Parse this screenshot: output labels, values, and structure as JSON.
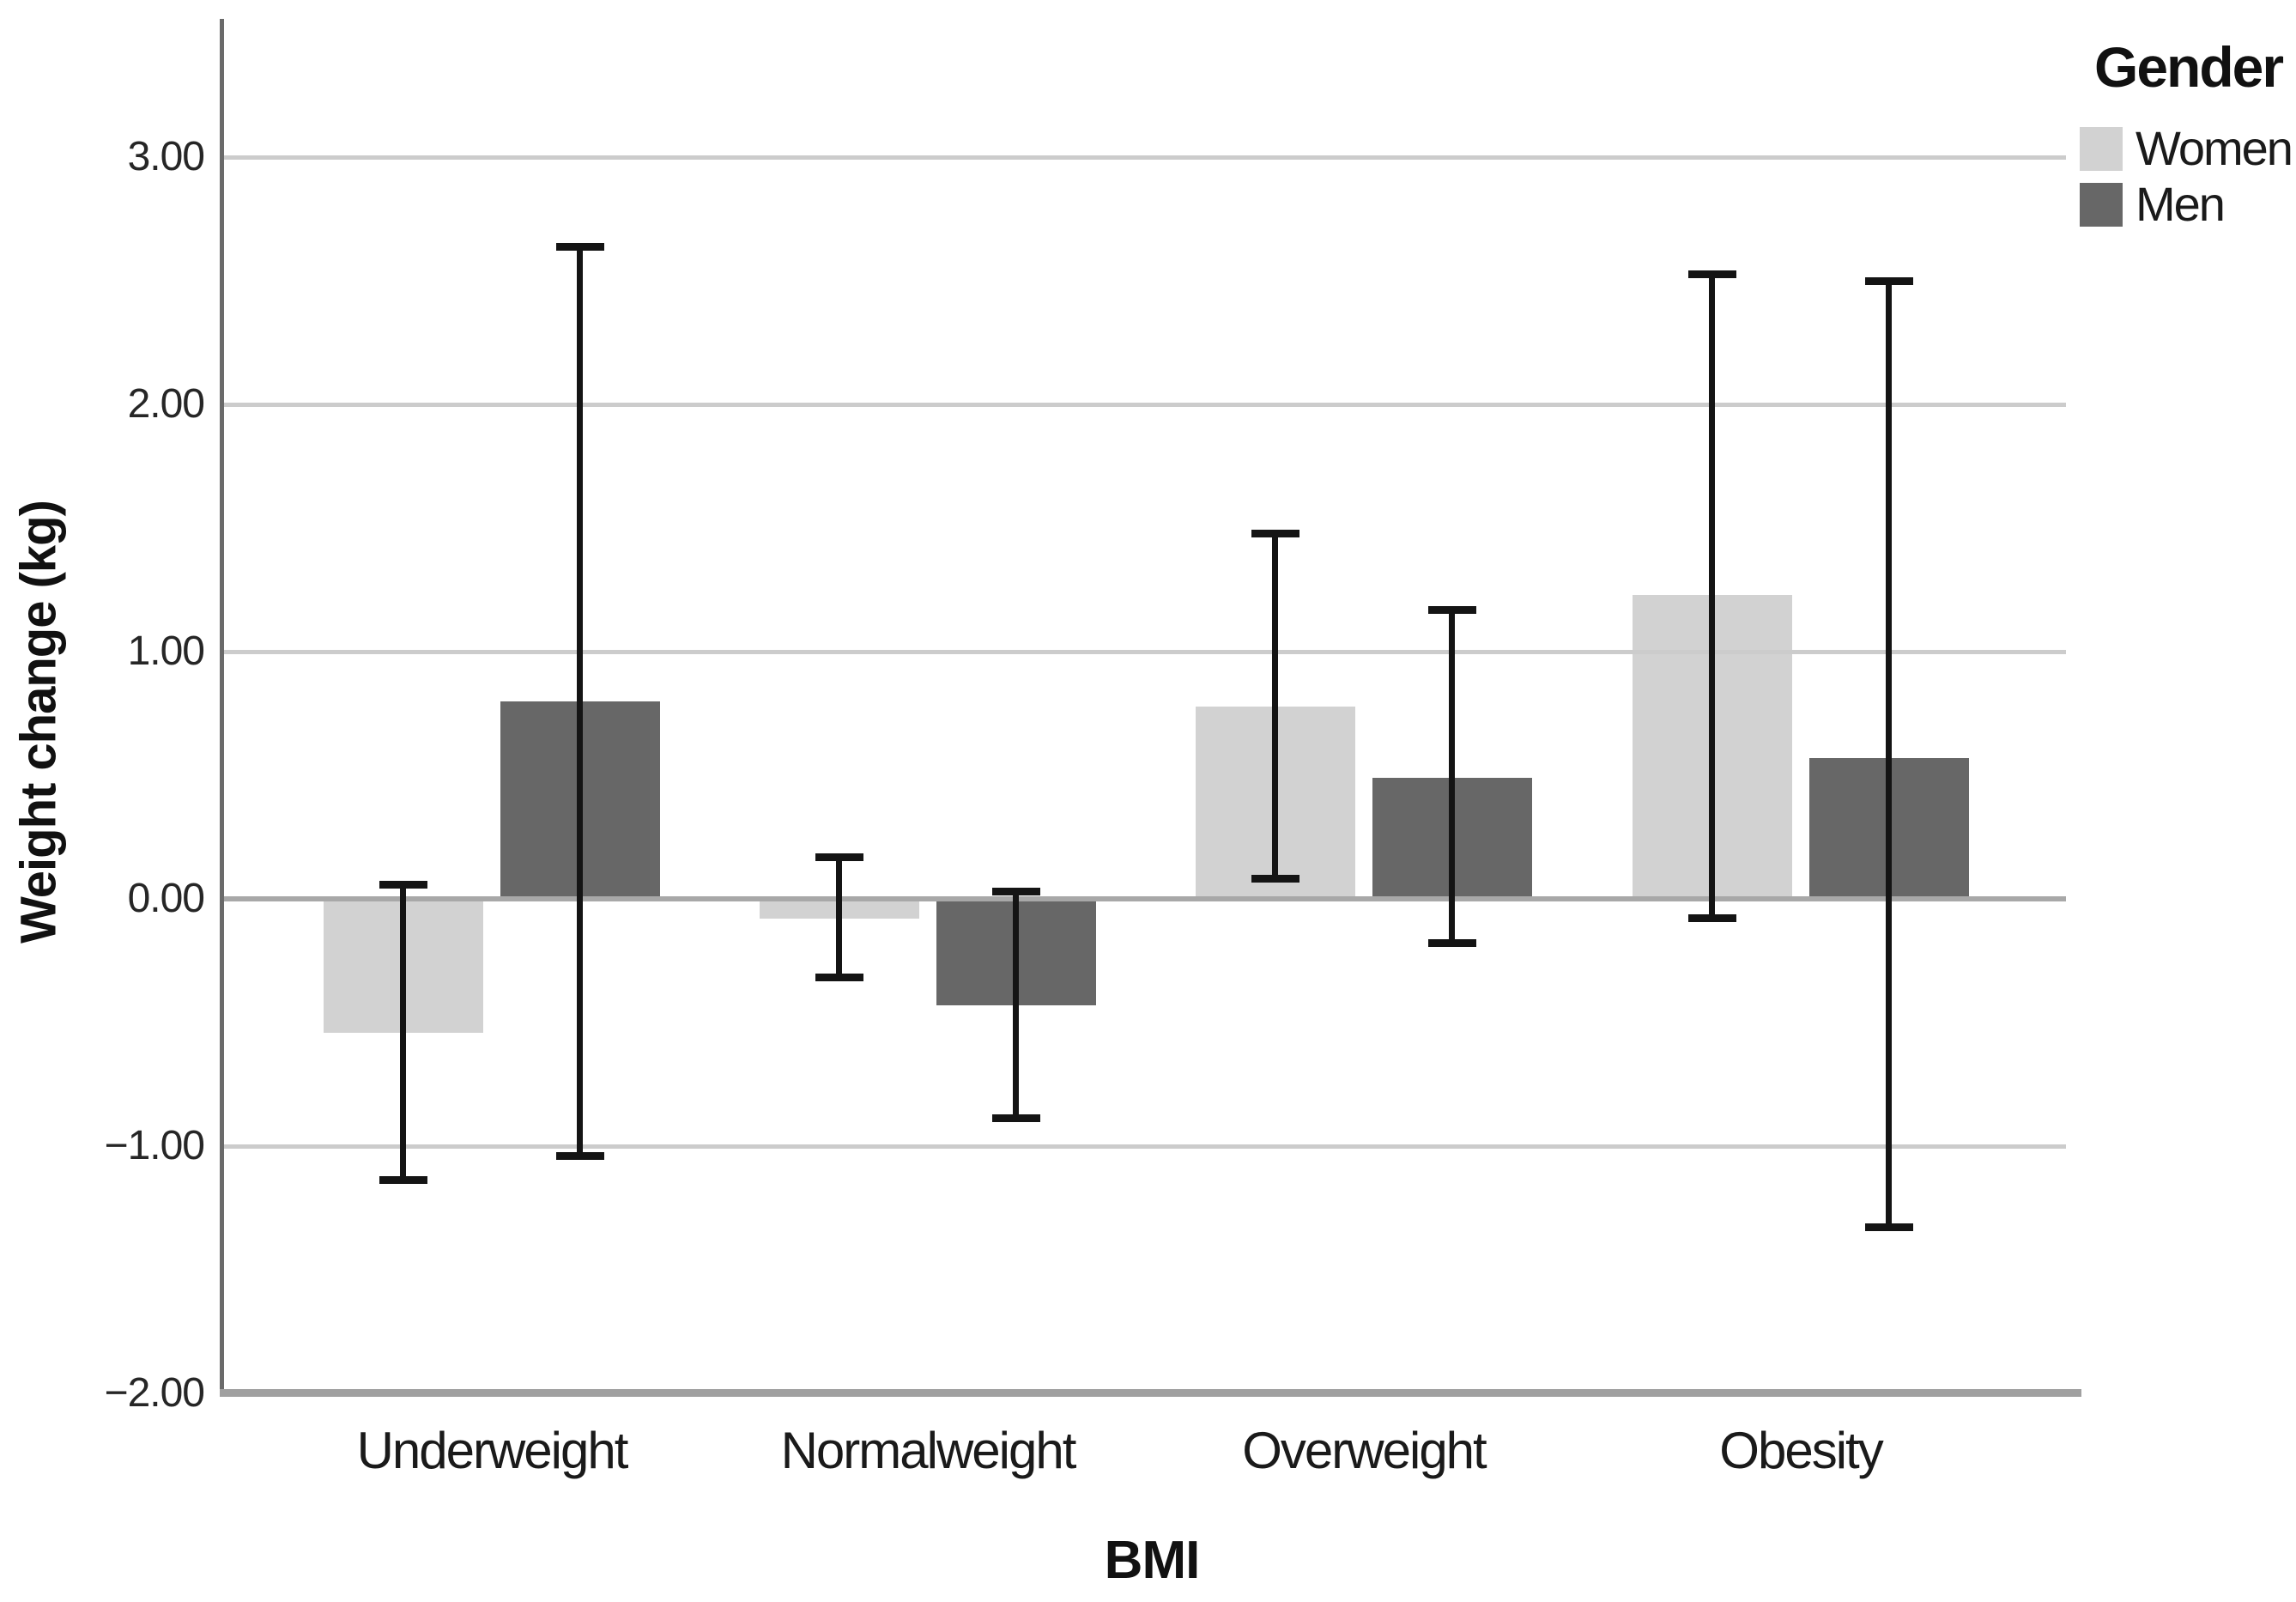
{
  "chart_data": {
    "type": "bar",
    "title": "",
    "categories": [
      "Underweight",
      "Normalweight",
      "Overweight",
      "Obesity"
    ],
    "series": [
      {
        "name": "Women",
        "color": "#d2d2d2",
        "values": [
          -0.54,
          -0.08,
          0.78,
          1.23
        ],
        "ci_low": [
          -1.14,
          -0.32,
          0.08,
          -0.08
        ],
        "ci_high": [
          0.06,
          0.17,
          1.48,
          2.53
        ]
      },
      {
        "name": "Men",
        "color": "#676767",
        "values": [
          0.8,
          -0.43,
          0.49,
          0.57
        ],
        "ci_low": [
          -1.04,
          -0.89,
          -0.18,
          -1.33
        ],
        "ci_high": [
          2.64,
          0.03,
          1.17,
          2.5
        ]
      }
    ],
    "xlabel": "BMI",
    "ylabel": "Weight change (kg)",
    "ylim": [
      -2.0,
      3.56
    ],
    "ytick_values": [
      3,
      2,
      1,
      0,
      -1,
      -2
    ],
    "ytick_labels": [
      "3.00",
      "2.00",
      "1.00",
      "0.00",
      "−1.00",
      "−2.00"
    ],
    "legend_title": "Gender",
    "legend_position": "top-right",
    "grid": "horizontal",
    "error_bars": true
  },
  "legend": {
    "title": "Gender",
    "entries": [
      {
        "label": "Women",
        "color": "#d2d2d2"
      },
      {
        "label": "Men",
        "color": "#676767"
      }
    ]
  },
  "axes": {
    "x_title": "BMI",
    "y_title": "Weight change (kg)"
  },
  "colors": {
    "background": "#ffffff",
    "gridline": "#cccccc",
    "zero_line": "#a8a8a8",
    "y_axis_line": "#6a6a6a",
    "x_axis_line": "#a0a0a0",
    "error_bar": "#141414",
    "text": "#1a1a1a"
  }
}
